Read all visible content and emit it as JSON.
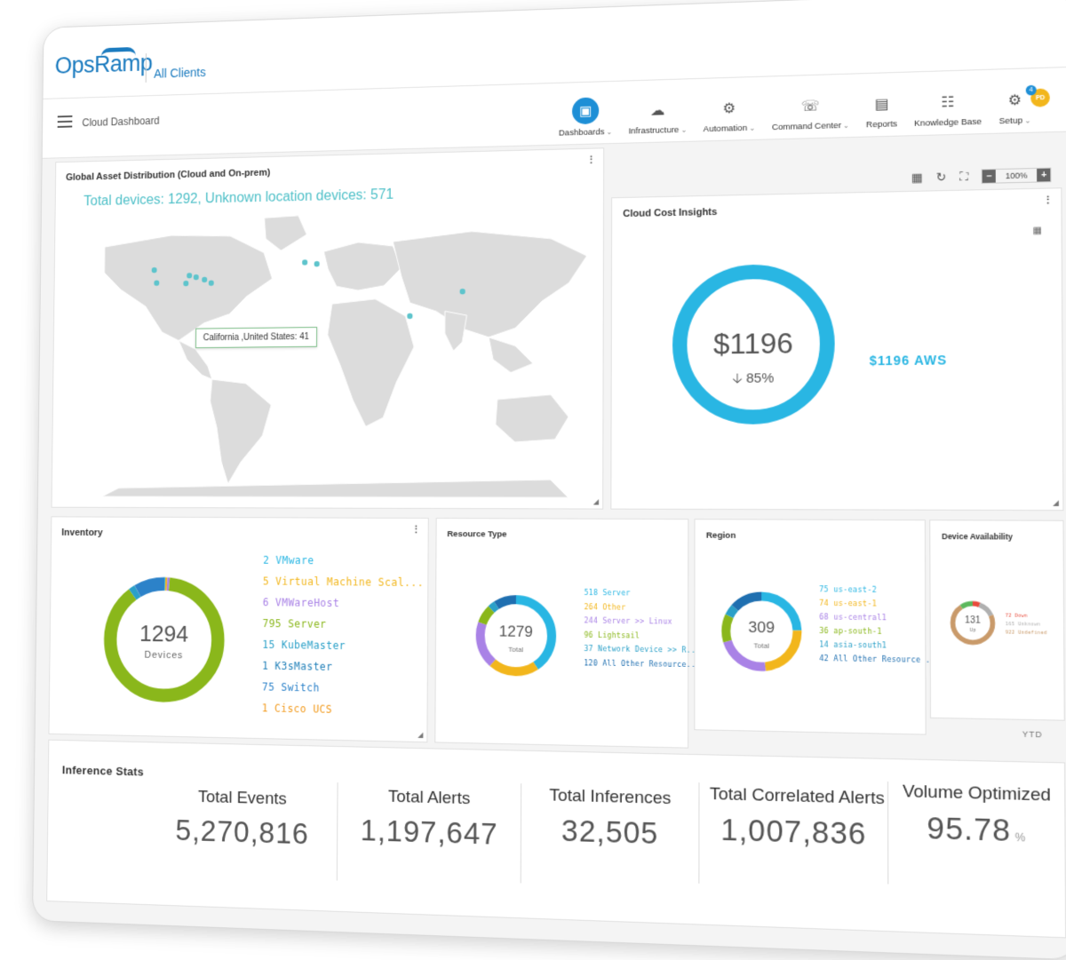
{
  "brand": {
    "logo": "OpsRamp",
    "client": "All Clients"
  },
  "nav": {
    "breadcrumb": "Cloud Dashboard",
    "items": [
      {
        "label": "Dashboards",
        "icon": "dashboard-icon",
        "dropdown": true,
        "active": true
      },
      {
        "label": "Infrastructure",
        "icon": "cloud-icon",
        "dropdown": true
      },
      {
        "label": "Automation",
        "icon": "robot-icon",
        "dropdown": true
      },
      {
        "label": "Command Center",
        "icon": "headset-icon",
        "dropdown": true
      },
      {
        "label": "Reports",
        "icon": "report-icon",
        "dropdown": false
      },
      {
        "label": "Knowledge Base",
        "icon": "book-icon",
        "dropdown": false
      },
      {
        "label": "Setup",
        "icon": "gear-icon",
        "dropdown": true
      }
    ],
    "avatar_initials": "PD",
    "notification_count": "4"
  },
  "toolbar": {
    "zoom": "100%"
  },
  "map": {
    "title": "Global Asset Distribution (Cloud and On-prem)",
    "headline": "Total devices: 1292, Unknown location devices: 571",
    "tooltip": "California ,United States: 41",
    "marker_color": "#5ec4cc"
  },
  "cost": {
    "title": "Cloud Cost Insights",
    "amount": "$1196",
    "change": "85%",
    "legend": "$1196 AWS",
    "ring_color": "#29b6e3"
  },
  "inventory": {
    "title": "Inventory",
    "total": "1294",
    "unit": "Devices",
    "items": [
      {
        "label": "2 VMware",
        "value": 2,
        "color": "#29b6e3"
      },
      {
        "label": "5 Virtual Machine Scal...",
        "value": 5,
        "color": "#f2b61c"
      },
      {
        "label": "6 VMWareHost",
        "value": 6,
        "color": "#a982e6"
      },
      {
        "label": "795 Server",
        "value": 795,
        "color": "#8ab71b"
      },
      {
        "label": "15 KubeMaster",
        "value": 15,
        "color": "#2aa0c8"
      },
      {
        "label": "1 K3sMaster",
        "value": 1,
        "color": "#1f7fb8"
      },
      {
        "label": "75 Switch",
        "value": 75,
        "color": "#2c82c9"
      },
      {
        "label": "1 Cisco UCS",
        "value": 1,
        "color": "#f29a1c"
      }
    ]
  },
  "resource_type": {
    "title": "Resource Type",
    "total": "1279",
    "unit": "Total",
    "items": [
      {
        "label": "518 Server",
        "value": 518,
        "color": "#29b6e3"
      },
      {
        "label": "264 Other",
        "value": 264,
        "color": "#f2b61c"
      },
      {
        "label": "244 Server >> Linux",
        "value": 244,
        "color": "#a982e6"
      },
      {
        "label": "96 Lightsail",
        "value": 96,
        "color": "#8ab71b"
      },
      {
        "label": "37 Network Device >> R...",
        "value": 37,
        "color": "#2aa0c8"
      },
      {
        "label": "120 All Other Resource...",
        "value": 120,
        "color": "#1f6fb0"
      }
    ]
  },
  "region": {
    "title": "Region",
    "total": "309",
    "unit": "Total",
    "items": [
      {
        "label": "75 us-east-2",
        "value": 75,
        "color": "#29b6e3"
      },
      {
        "label": "74 us-east-1",
        "value": 74,
        "color": "#f2b61c"
      },
      {
        "label": "68 us-central1",
        "value": 68,
        "color": "#a982e6"
      },
      {
        "label": "36 ap-south-1",
        "value": 36,
        "color": "#8ab71b"
      },
      {
        "label": "14 asia-south1",
        "value": 14,
        "color": "#2aa0c8"
      },
      {
        "label": "42 All Other Resource ...",
        "value": 42,
        "color": "#1f6fb0"
      }
    ]
  },
  "availability": {
    "title": "Device Availability",
    "total": "131",
    "unit": "Up",
    "items": [
      {
        "label": "72 Down",
        "value": 72,
        "color": "#e84c3d"
      },
      {
        "label": "165 Unknown",
        "value": 165,
        "color": "#b0b0b0"
      },
      {
        "label": "922 Undefined",
        "value": 922,
        "color": "#c99a6a"
      }
    ],
    "up_color": "#5cb85c"
  },
  "period": "YTD",
  "stats": {
    "title": "Inference Stats",
    "items": [
      {
        "label": "Total Events",
        "value": "5,270,816",
        "unit": ""
      },
      {
        "label": "Total Alerts",
        "value": "1,197,647",
        "unit": ""
      },
      {
        "label": "Total Inferences",
        "value": "32,505",
        "unit": ""
      },
      {
        "label": "Total Correlated Alerts",
        "value": "1,007,836",
        "unit": ""
      },
      {
        "label": "Volume Optimized",
        "value": "95.78",
        "unit": "%"
      }
    ]
  }
}
